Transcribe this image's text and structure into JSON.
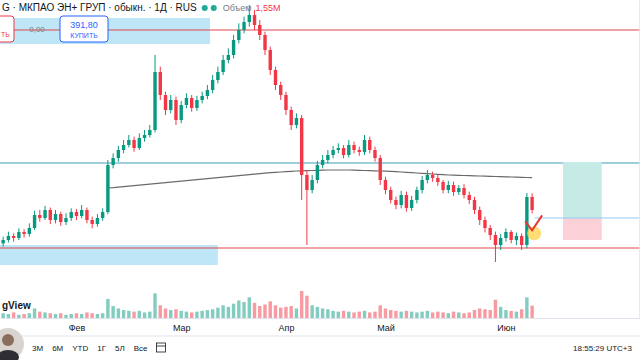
{
  "chart_data": {
    "type": "candlestick",
    "title": "G · МКПАО ЭН+ ГРУП · обыкн. · 1Д · RUS",
    "categories": [
      null,
      null,
      null,
      null,
      null,
      null,
      null,
      null,
      null,
      null,
      null,
      null,
      null,
      null,
      "Фев",
      null,
      null,
      null,
      null,
      null,
      null,
      null,
      null,
      null,
      null,
      null,
      null,
      null,
      null,
      null,
      null,
      null,
      null,
      null,
      "Мар",
      null,
      null,
      null,
      null,
      null,
      null,
      null,
      null,
      null,
      null,
      null,
      null,
      null,
      null,
      null,
      null,
      null,
      null,
      null,
      "Апр",
      null,
      null,
      null,
      null,
      null,
      null,
      null,
      null,
      null,
      null,
      null,
      null,
      null,
      null,
      null,
      null,
      null,
      null,
      "Май",
      null,
      null,
      null,
      null,
      null,
      null,
      null,
      null,
      null,
      null,
      null,
      null,
      null,
      null,
      null,
      null,
      null,
      null,
      null,
      null,
      null,
      null,
      "Июн",
      null,
      null,
      null,
      null,
      null
    ],
    "xlim": [
      -0.6,
      121.6
    ],
    "ylim": [
      327.2,
      518
    ],
    "yticks": [],
    "y2lim": [
      0,
      40
    ],
    "y2ticks": [],
    "tick_labels": "x",
    "grid": false,
    "series": [
      {
        "type": "candlestick",
        "open": [
          372,
          374,
          376.4,
          375.2,
          378.8,
          377.6,
          381.2,
          389,
          387.2,
          392,
          386,
          389.6,
          384.8,
          387.2,
          390.8,
          388.4,
          392,
          386,
          383.6,
          387.2,
          390.8,
          419,
          423.2,
          428,
          431,
          434,
          429.2,
          435.2,
          437,
          440,
          474.8,
          461,
          452,
          458,
          446,
          455,
          459.2,
          453.2,
          458,
          460.4,
          464,
          470,
          474.8,
          482,
          485,
          494,
          500,
          504.8,
          509,
          503,
          497,
          488,
          476,
          467,
          461,
          452,
          443,
          447.2,
          413,
          404,
          410,
          419,
          422,
          425,
          428,
          429.2,
          425,
          431,
          428,
          426.8,
          434,
          428,
          423.2,
          410,
          404,
          398,
          395,
          401,
          393.2,
          398,
          404,
          410,
          413,
          411.2,
          408.8,
          404,
          407,
          402.8,
          405.2,
          401,
          398,
          392,
          386,
          381.2,
          377,
          371,
          375.2,
          378.8,
          374,
          376.4,
          371,
          399.8
        ],
        "high": [
          376,
          379,
          378,
          381,
          380.5,
          384,
          391.5,
          392,
          394.5,
          393.5,
          392,
          391,
          390,
          393,
          392.5,
          395,
          393.5,
          388,
          389.5,
          393,
          422,
          426,
          430.5,
          434,
          437,
          436,
          438,
          440,
          443,
          485,
          478,
          463,
          461,
          460,
          457.5,
          462,
          461,
          460.5,
          463,
          467,
          473,
          478,
          485,
          489,
          497,
          504,
          508,
          515,
          512,
          506,
          499,
          490,
          478,
          469,
          463,
          454,
          450,
          449,
          416,
          413,
          421.5,
          425,
          428,
          430.5,
          432,
          431,
          434,
          433,
          430,
          437,
          436,
          430,
          425,
          412,
          406,
          400,
          403.5,
          403,
          400.5,
          406,
          412.5,
          416,
          415,
          413,
          410,
          409.5,
          409,
          407,
          407.5,
          403,
          400,
          394,
          388,
          383,
          379,
          377.5,
          381,
          380,
          378.5,
          378,
          402.2,
          402
        ],
        "low": [
          370,
          372.5,
          373,
          374,
          375.5,
          376,
          380,
          385,
          386,
          383.5,
          384,
          382.5,
          383,
          385.5,
          386,
          387,
          384,
          381,
          382,
          385.5,
          389.5,
          417,
          421,
          426,
          429.5,
          427,
          428,
          433,
          435.5,
          438.5,
          458,
          449,
          450,
          443,
          444,
          453,
          451,
          451.5,
          456,
          458.5,
          462,
          468,
          473,
          480,
          483,
          492,
          498,
          502,
          500,
          494,
          485,
          473,
          464,
          458,
          449,
          440,
          441,
          398,
          371,
          402,
          408,
          417,
          420,
          423,
          426,
          423,
          423.5,
          426,
          424.5,
          425,
          426,
          421,
          407,
          401.5,
          396,
          392.5,
          393,
          391,
          391.5,
          396,
          402,
          408,
          409,
          406.5,
          402,
          402,
          400.5,
          401,
          399,
          395.5,
          389.5,
          383,
          378.5,
          374,
          360.8,
          368,
          373,
          372,
          371,
          368,
          369,
          390
        ],
        "close": [
          374,
          376.4,
          375.2,
          378.8,
          377.6,
          381.2,
          389,
          387.2,
          392,
          386,
          389.6,
          384.8,
          387.2,
          390.8,
          388.4,
          392,
          386,
          383.6,
          387.2,
          390.8,
          419,
          423.2,
          428,
          431,
          434,
          429.2,
          435.2,
          437,
          440,
          474.8,
          461,
          452,
          458,
          446,
          455,
          459.2,
          453.2,
          458,
          460.4,
          464,
          470,
          474.8,
          482,
          485,
          494,
          500,
          504.8,
          509,
          503,
          497,
          488,
          476,
          467,
          461,
          452,
          443,
          447.2,
          413,
          404,
          410,
          419,
          422,
          425,
          428,
          429.2,
          425,
          431,
          428,
          426.8,
          434,
          428,
          423.2,
          410,
          404,
          398,
          395,
          401,
          393.2,
          398,
          404,
          410,
          413,
          411.2,
          408.8,
          404,
          407,
          402.8,
          405.2,
          401,
          398,
          392,
          386,
          381.2,
          377,
          371,
          375.2,
          378.8,
          374,
          376.4,
          371,
          399.8,
          392
        ]
      },
      {
        "type": "line",
        "color": "#6b6b6b",
        "values": [
          null,
          null,
          null,
          null,
          null,
          null,
          null,
          null,
          null,
          null,
          null,
          null,
          null,
          null,
          null,
          null,
          null,
          null,
          null,
          null,
          405.2,
          405.4,
          405.7,
          406,
          406.3,
          406.6,
          406.9,
          407.2,
          407.5,
          407.8,
          408.1,
          408.4,
          408.7,
          409,
          409.3,
          409.6,
          409.9,
          410.2,
          410.5,
          410.8,
          411.1,
          411.4,
          411.7,
          412,
          412.3,
          412.6,
          412.9,
          413.2,
          413.5,
          413.8,
          414.1,
          414.4,
          414.6,
          414.8,
          415,
          415.2,
          415.4,
          415.5,
          415.6,
          415.7,
          415.8,
          415.9,
          416,
          416,
          416,
          416,
          416,
          415.9,
          415.8,
          415.7,
          415.6,
          415.5,
          415.4,
          415.3,
          415.2,
          415,
          414.8,
          414.6,
          414.4,
          414.2,
          414,
          413.8,
          413.6,
          413.4,
          413.2,
          413,
          412.9,
          412.8,
          412.7,
          412.6,
          412.5,
          412.4,
          412.3,
          412.2,
          412.1,
          412,
          411.9,
          411.8,
          411.7,
          411.6,
          411.5,
          411.4
        ]
      },
      {
        "type": "bar",
        "axis": "y2",
        "name": "Объем",
        "last_label": "1,55M",
        "values": [
          0.6,
          0.5,
          0.7,
          0.4,
          0.5,
          0.6,
          1.2,
          0.8,
          0.7,
          0.6,
          0.5,
          0.6,
          0.4,
          0.5,
          0.6,
          0.5,
          0.7,
          0.6,
          0.5,
          0.6,
          2.4,
          1.5,
          1.2,
          1.0,
          0.9,
          0.8,
          0.9,
          0.7,
          0.8,
          3.1,
          1.6,
          1.2,
          1.0,
          1.1,
          0.9,
          0.8,
          0.7,
          0.8,
          0.9,
          1.0,
          1.1,
          1.3,
          1.6,
          1.4,
          1.8,
          2.2,
          2.0,
          2.6,
          1.9,
          1.5,
          1.7,
          2.1,
          1.6,
          1.3,
          1.4,
          1.5,
          1.2,
          3.4,
          2.8,
          1.6,
          1.4,
          1.2,
          1.1,
          0.9,
          0.8,
          0.9,
          0.8,
          0.7,
          0.8,
          0.9,
          0.7,
          0.8,
          1.6,
          1.2,
          1.0,
          0.9,
          0.8,
          0.9,
          0.8,
          0.7,
          0.8,
          0.9,
          0.7,
          0.8,
          0.7,
          0.6,
          0.8,
          0.7,
          0.6,
          0.7,
          1.0,
          1.2,
          1.1,
          1.0,
          2.3,
          1.4,
          1.0,
          0.9,
          0.8,
          1.1,
          2.6,
          1.55
        ]
      }
    ],
    "zones": [
      {
        "x0": -0.6,
        "x1": 39.5,
        "y0": 491.6,
        "y1": 507.2,
        "color": "#b3e2f5"
      },
      {
        "x0": -0.6,
        "x1": 41,
        "y0": 359,
        "y1": 371,
        "color": "#b3e2f5"
      }
    ],
    "levels": [
      {
        "value": 500,
        "color": "#e0474c"
      },
      {
        "value": 420.2,
        "color": "#3a9fbf"
      },
      {
        "value": 369.2,
        "color": "#e0474c"
      }
    ],
    "position": {
      "x0": 106.9,
      "x1": 114.3,
      "entry_x0": 101.5,
      "entry": 387.2,
      "target": 420.8,
      "stop": 374,
      "target_color": "#c6ebe7",
      "stop_color": "#fbd0d6",
      "entry_color": "#8fcbee"
    }
  },
  "ui": {
    "sell_label": "ТЬ",
    "spread": "0,00",
    "buy_price": "391,80",
    "buy_label": "КУПИТЬ",
    "logo": "gView",
    "ranges": [
      "3М",
      "6М",
      "YTD",
      "1Г",
      "5Л",
      "Все"
    ],
    "clock": "18:55:29 UTC+3"
  }
}
